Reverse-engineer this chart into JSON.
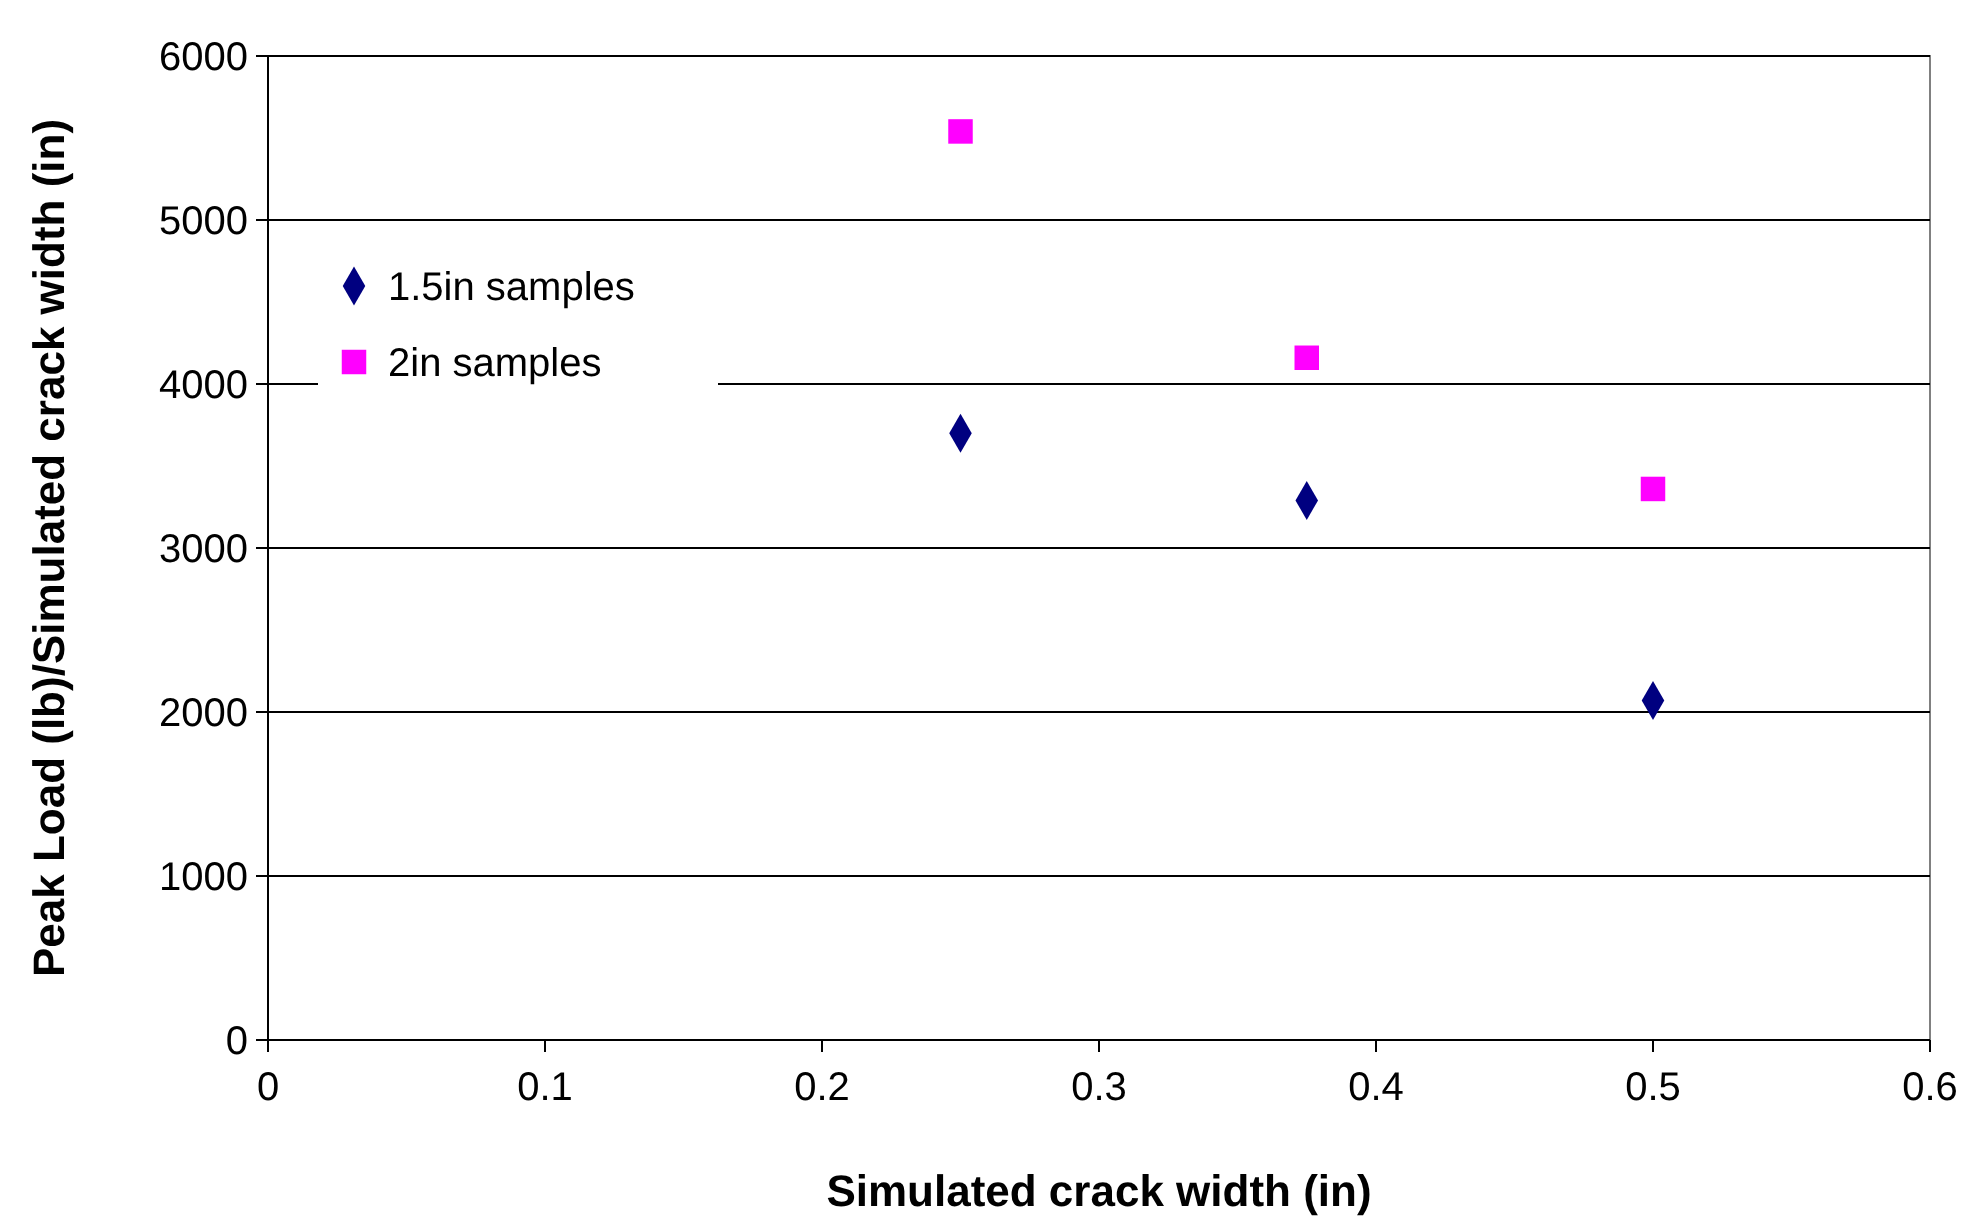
{
  "chart_data": {
    "type": "scatter",
    "xlabel": "Simulated crack width (in)",
    "ylabel": "Peak Load (lb)/Simulated crack width (in)",
    "xlim": [
      0,
      0.6
    ],
    "xticks": [
      0,
      0.1,
      0.2,
      0.3,
      0.4,
      0.5,
      0.6
    ],
    "ylim": [
      0,
      6000
    ],
    "yticks": [
      0,
      1000,
      2000,
      3000,
      4000,
      5000,
      6000
    ],
    "grid": "y",
    "legend": "top left",
    "series": [
      {
        "name": "1.5in samples",
        "color": "#000080",
        "marker": "diamond",
        "x": [
          0.25,
          0.375,
          0.5
        ],
        "values": [
          3700,
          3290,
          2070
        ]
      },
      {
        "name": "2in samples",
        "color": "#ff00ff",
        "marker": "square",
        "x": [
          0.25,
          0.375,
          0.5
        ],
        "values": [
          5540,
          4160,
          3360
        ]
      }
    ]
  }
}
